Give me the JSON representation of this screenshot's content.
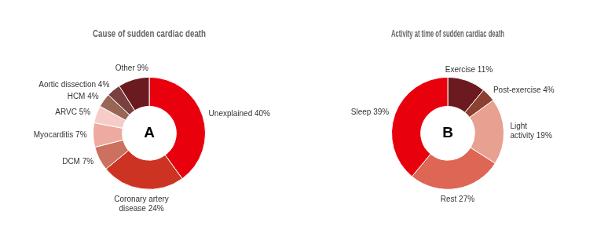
{
  "chart_data": [
    {
      "type": "doughnut",
      "title": "Cause of sudden cardiac death",
      "annotations": [
        "A"
      ],
      "categories": [
        "Unexplained 40%",
        "Coronary artery\ndisease 24%",
        "DCM 7%",
        "Myocarditis 7%",
        "ARVC 5%",
        "HCM 4%",
        "Aortic dissection 4%",
        "Other 9%"
      ],
      "values": [
        40,
        24,
        7,
        7,
        5,
        4,
        4,
        9
      ],
      "colors": [
        "#e8000d",
        "#cc3322",
        "#cc7060",
        "#eeaaa0",
        "#f5ccc8",
        "#996655",
        "#7a4040",
        "#6b1a20"
      ]
    },
    {
      "type": "doughnut",
      "title": "Activity at time of sudden cardiac death",
      "annotations": [
        "B"
      ],
      "categories": [
        "Exercise 11%",
        "Post-exercise 4%",
        "Light\nactivity 19%",
        "Rest 27%",
        "Sleep 39%"
      ],
      "values": [
        11,
        4,
        19,
        27,
        39
      ],
      "colors": [
        "#6b1a20",
        "#8b4030",
        "#e8a090",
        "#dd6655",
        "#e8000d"
      ]
    }
  ]
}
